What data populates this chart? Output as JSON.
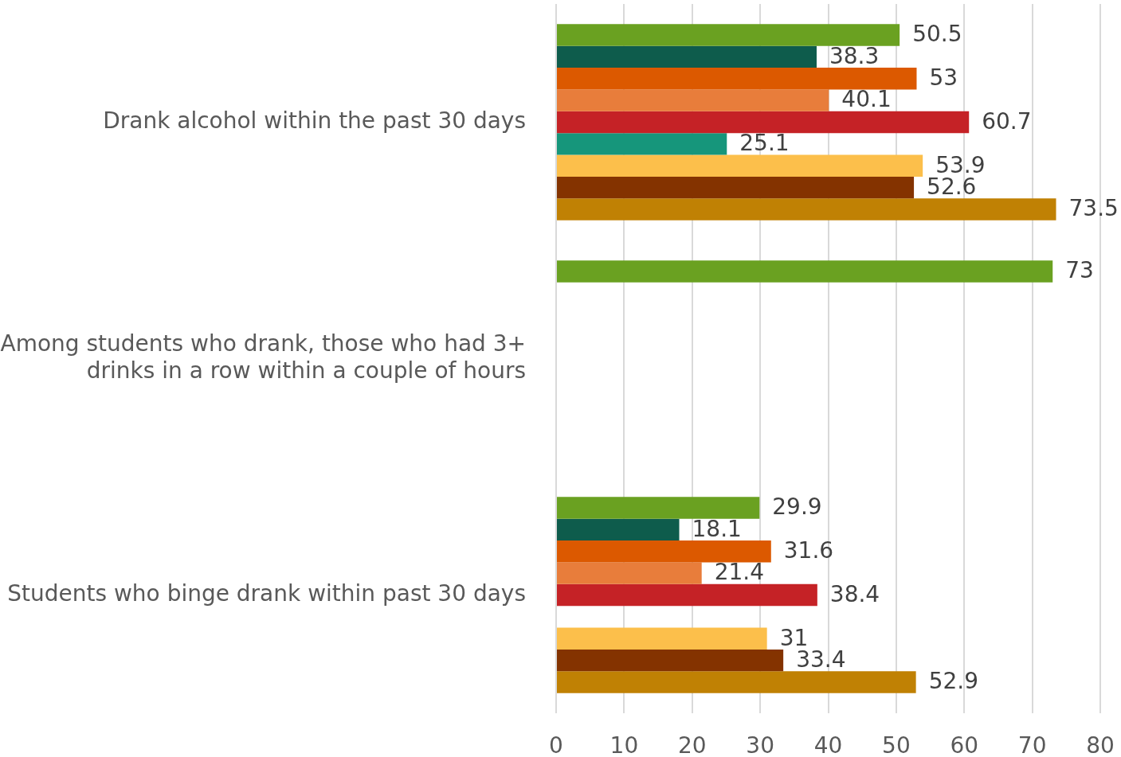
{
  "chart_data": {
    "type": "bar",
    "orientation": "horizontal",
    "categories": [
      "Drank alcohol within the past 30 days",
      "Among students who drank, those who had 3+ drinks in a row within a couple of hours",
      "Students who binge drank within past 30 days"
    ],
    "series": [
      {
        "color": "#6aa121",
        "values": [
          50.5,
          73,
          29.9
        ]
      },
      {
        "color": "#0e5c4c",
        "values": [
          38.3,
          null,
          18.1
        ]
      },
      {
        "color": "#dc5900",
        "values": [
          53,
          null,
          31.6
        ]
      },
      {
        "color": "#e87d3b",
        "values": [
          40.1,
          null,
          21.4
        ]
      },
      {
        "color": "#c52226",
        "values": [
          60.7,
          null,
          38.4
        ]
      },
      {
        "color": "#16967b",
        "values": [
          25.1,
          null,
          null
        ]
      },
      {
        "color": "#fcbf4b",
        "values": [
          53.9,
          null,
          31
        ]
      },
      {
        "color": "#843300",
        "values": [
          52.6,
          null,
          33.4
        ]
      },
      {
        "color": "#c08104",
        "values": [
          73.5,
          null,
          52.9
        ]
      }
    ],
    "xlim": [
      0,
      80
    ],
    "xticks": [
      0,
      10,
      20,
      30,
      40,
      50,
      60,
      70,
      80
    ],
    "grid": "x",
    "data_labels": true
  }
}
